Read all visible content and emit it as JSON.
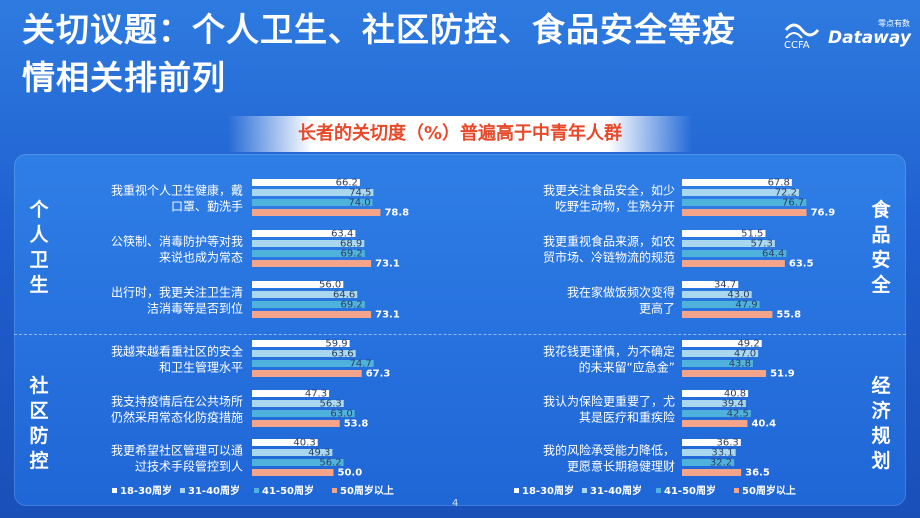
{
  "title": "关切议题：个人卫生、社区防控、食品安全等疫情相关排前列",
  "logo": {
    "brand": "Dataway",
    "sub": "零点有数",
    "ccfa": "CCFA"
  },
  "banner": "长者的关切度（%）普遍高于中青年人群",
  "page_number": "4",
  "colors": {
    "background": "#1f5fcf",
    "banner_text": "#e8492a",
    "series": [
      "#ffffff",
      "#a9d8ee",
      "#4fb2dd",
      "#f3a48a"
    ]
  },
  "side_labels": {
    "left_top": "个人卫生",
    "left_bottom": "社区防控",
    "right_top": "食品安全",
    "right_bottom": "经济规划"
  },
  "chart_data": [
    {
      "type": "bar",
      "orientation": "horizontal",
      "panel": "left",
      "series_names": [
        "18-30周岁",
        "31-40周岁",
        "41-50周岁",
        "50周岁以上"
      ],
      "categories": [
        {
          "group": "个人卫生",
          "label": [
            "我重视个人卫生健康，戴",
            "口罩、勤洗手"
          ],
          "values": [
            66.2,
            74.5,
            74.0,
            78.8
          ]
        },
        {
          "group": "个人卫生",
          "label": [
            "公筷制、消毒防护等对我",
            "来说也成为常态"
          ],
          "values": [
            63.4,
            68.9,
            69.2,
            73.1
          ]
        },
        {
          "group": "个人卫生",
          "label": [
            "出行时，我更关注卫生清",
            "洁消毒等是否到位"
          ],
          "values": [
            56.0,
            64.6,
            69.2,
            73.1
          ]
        },
        {
          "group": "社区防控",
          "label": [
            "我越来越看重社区的安全",
            "和卫生管理水平"
          ],
          "values": [
            59.9,
            63.6,
            74.7,
            67.3
          ]
        },
        {
          "group": "社区防控",
          "label": [
            "我支持疫情后在公共场所",
            "仍然采用常态化防疫措施"
          ],
          "values": [
            47.3,
            56.3,
            63.0,
            53.8
          ]
        },
        {
          "group": "社区防控",
          "label": [
            "我更希望社区管理可以通",
            "过技术手段管控到人"
          ],
          "values": [
            40.3,
            49.3,
            56.2,
            50.0
          ]
        }
      ]
    },
    {
      "type": "bar",
      "orientation": "horizontal",
      "panel": "right",
      "series_names": [
        "18-30周岁",
        "31-40周岁",
        "41-50周岁",
        "50周岁以上"
      ],
      "categories": [
        {
          "group": "食品安全",
          "label": [
            "我更关注食品安全，如少",
            "吃野生动物，生熟分开"
          ],
          "values": [
            67.8,
            72.2,
            76.7,
            76.9
          ]
        },
        {
          "group": "食品安全",
          "label": [
            "我更重视食品来源，如农",
            "贸市场、冷链物流的规范"
          ],
          "values": [
            51.5,
            57.3,
            64.4,
            63.5
          ]
        },
        {
          "group": "食品安全",
          "label": [
            "我在家做饭频次变得",
            "更高了"
          ],
          "values": [
            34.7,
            43.0,
            47.9,
            55.8
          ]
        },
        {
          "group": "经济规划",
          "label": [
            "我花钱更谨慎，为不确定",
            "的未来留“应急金”"
          ],
          "values": [
            49.2,
            47.0,
            43.8,
            51.9
          ]
        },
        {
          "group": "经济规划",
          "label": [
            "我认为保险更重要了，尤",
            "其是医疗和重疾险"
          ],
          "values": [
            40.8,
            39.4,
            42.5,
            40.4
          ]
        },
        {
          "group": "经济规划",
          "label": [
            "我的风险承受能力降低，",
            "更愿意长期稳健理财"
          ],
          "values": [
            36.3,
            33.1,
            32.2,
            36.5
          ]
        }
      ]
    }
  ]
}
